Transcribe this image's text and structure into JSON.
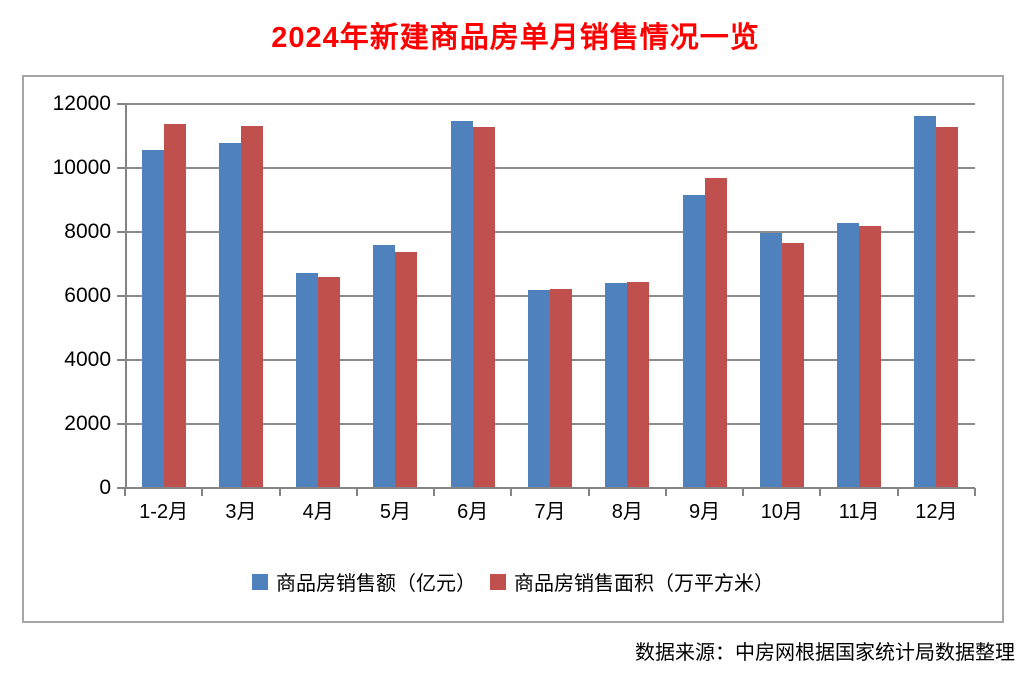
{
  "title": "2024年新建商品房单月销售情况一览",
  "title_color": "#ff0000",
  "footer": "数据来源：中房网根据国家统计局数据整理",
  "chart_data": {
    "type": "bar",
    "title": "2024年新建商品房单月销售情况一览",
    "categories": [
      "1-2月",
      "3月",
      "4月",
      "5月",
      "6月",
      "7月",
      "8月",
      "9月",
      "10月",
      "11月",
      "12月"
    ],
    "series": [
      {
        "name": "商品房销售额（亿元）",
        "color": "#4F81BD",
        "values": [
          10566,
          10789,
          6712,
          7598,
          11468,
          6197,
          6393,
          9157,
          7975,
          8270,
          11625
        ]
      },
      {
        "name": "商品房销售面积（万平方米）",
        "color": "#C0504D",
        "values": [
          11369,
          11299,
          6584,
          7390,
          11274,
          6233,
          6453,
          9682,
          7646,
          8188,
          11267
        ]
      }
    ],
    "xlabel": "",
    "ylabel": "",
    "ylim": [
      0,
      12000
    ],
    "yticks": [
      0,
      2000,
      4000,
      6000,
      8000,
      10000,
      12000
    ],
    "grid": true,
    "grid_color": "#8c8c8c",
    "legend_position": "bottom",
    "source_note": "数据来源：中房网根据国家统计局数据整理"
  }
}
